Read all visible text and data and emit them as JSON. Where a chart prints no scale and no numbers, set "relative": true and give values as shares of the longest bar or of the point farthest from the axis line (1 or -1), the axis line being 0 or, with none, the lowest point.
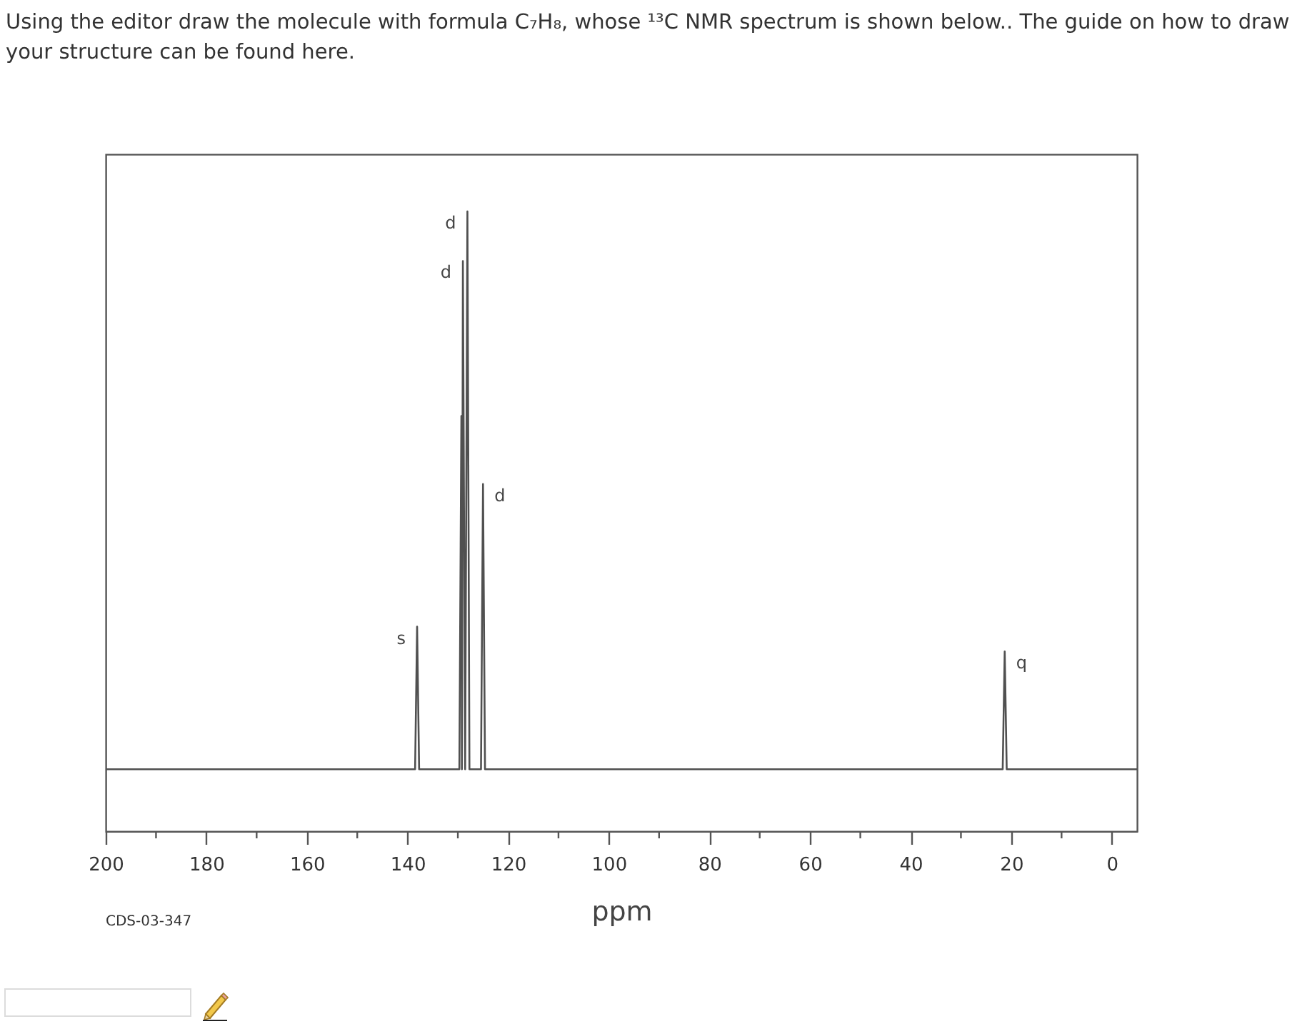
{
  "chart_data": {
    "type": "line",
    "title": "Using the editor draw the molecule with formula C₇H₈, whose ¹³C NMR spectrum is shown below.. The guide on how to draw your structure can be found here.",
    "xlabel": "ppm",
    "relative": true,
    "xlim": [
      200,
      -5
    ],
    "xticks": [
      200,
      {
        "value": 190,
        "label": null
      },
      180,
      {
        "value": 170,
        "label": null
      },
      160,
      {
        "value": 150,
        "label": null
      },
      140,
      {
        "value": 130,
        "label": null
      },
      120,
      {
        "value": 110,
        "label": null
      },
      100,
      {
        "value": 90,
        "label": null
      },
      80,
      {
        "value": 70,
        "label": null
      },
      60,
      {
        "value": 50,
        "label": null
      },
      40,
      {
        "value": 30,
        "label": null
      },
      20,
      {
        "value": 10,
        "label": null
      },
      0
    ],
    "x": [
      200,
      138.5,
      138.1,
      137.7,
      129.7,
      129.3,
      129.2,
      129.0,
      128.55,
      128.1,
      127.7,
      125.4,
      125.0,
      124.6,
      21.7,
      21.3,
      20.9,
      -5
    ],
    "series": [
      {
        "color": "#505050",
        "values": [
          0.1,
          0.1,
          0.33,
          0.1,
          0.1,
          0.67,
          0.1,
          0.92,
          0.1,
          1,
          0.1,
          0.1,
          0.56,
          0.1,
          0.1,
          0.29,
          0.1,
          0.1
        ]
      }
    ],
    "annotations": [
      {
        "text": "s",
        "x": 138.1,
        "y": 0.33
      },
      {
        "text": "d",
        "x": 129.0,
        "y": 0.92
      },
      {
        "text": "d",
        "x": 128.1,
        "y": 1
      },
      {
        "text": "d",
        "x": 125.0,
        "y": 0.56
      },
      {
        "text": "q",
        "x": 21.3,
        "y": 0.29
      },
      "CDS-03-347"
    ]
  }
}
